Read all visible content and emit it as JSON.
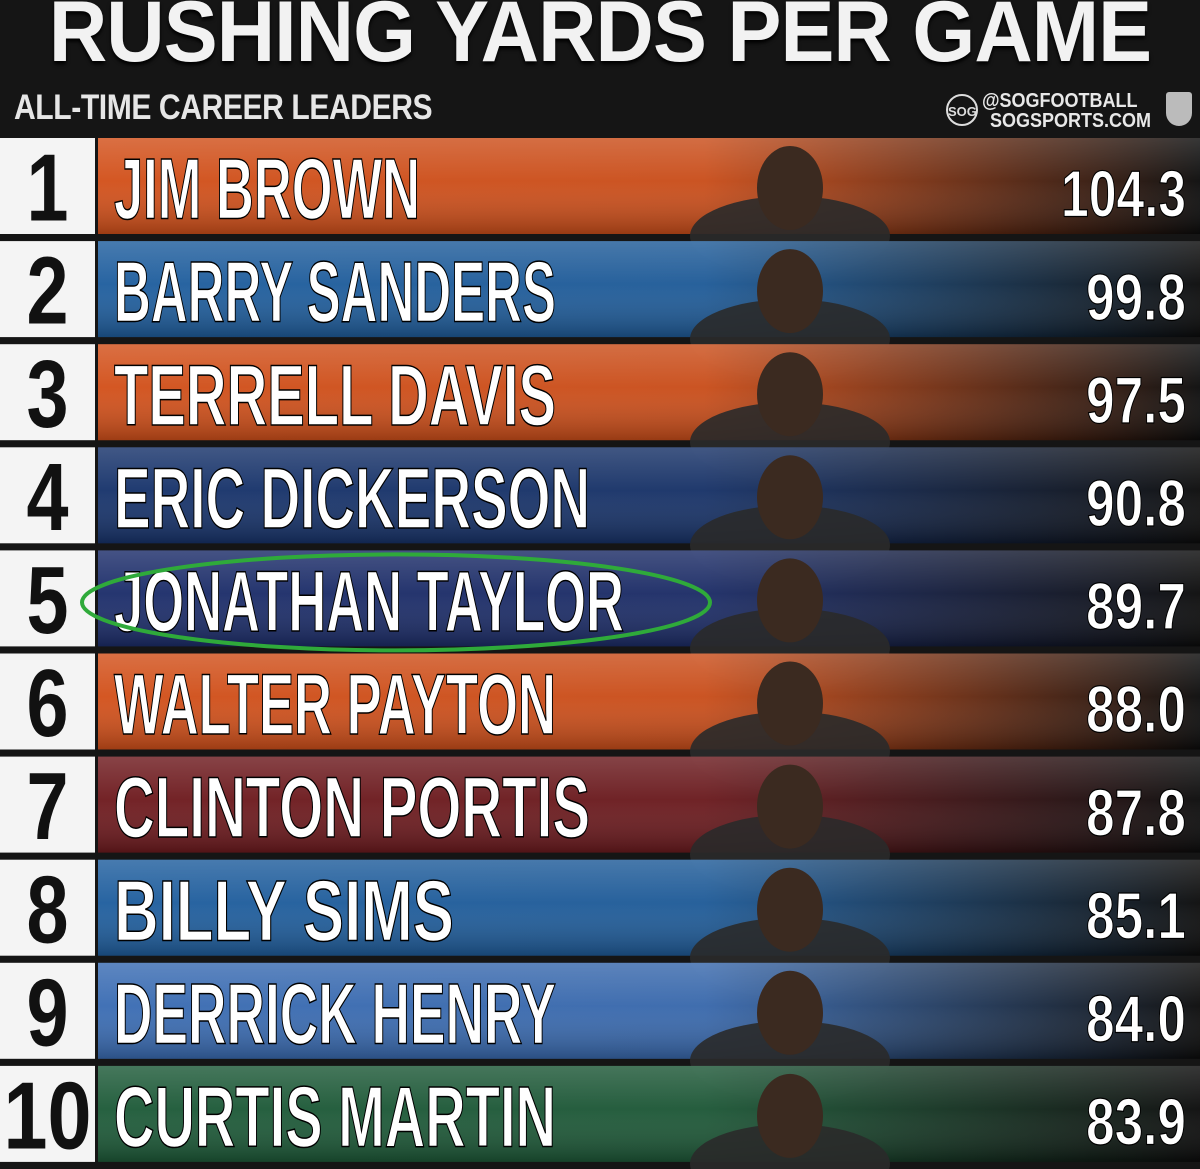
{
  "title": "RUSHING YARDS PER GAME",
  "subtitle": "ALL-TIME CAREER LEADERS",
  "brand": {
    "logo_text": "SOG",
    "handle": "@SOGFOOTBALL",
    "site": "SOGSPORTS.COM"
  },
  "chart_data": {
    "type": "bar",
    "title": "RUSHING YARDS PER GAME",
    "subtitle": "ALL-TIME CAREER LEADERS",
    "categories": [
      "JIM BROWN",
      "BARRY SANDERS",
      "TERRELL DAVIS",
      "ERIC DICKERSON",
      "JONATHAN TAYLOR",
      "WALTER PAYTON",
      "CLINTON PORTIS",
      "BILLY SIMS",
      "DERRICK HENRY",
      "CURTIS MARTIN"
    ],
    "ranks": [
      "1",
      "2",
      "3",
      "4",
      "5",
      "6",
      "7",
      "8",
      "9",
      "10"
    ],
    "values": [
      104.3,
      99.8,
      97.5,
      90.8,
      89.7,
      88.0,
      87.8,
      85.1,
      84.0,
      83.9
    ],
    "value_labels": [
      "104.3",
      "99.8",
      "97.5",
      "90.8",
      "89.7",
      "88.0",
      "87.8",
      "85.1",
      "84.0",
      "83.9"
    ],
    "bar_colors": [
      "#d2501a",
      "#1f5e9e",
      "#d2501a",
      "#17336b",
      "#1c2d6a",
      "#d2501a",
      "#6e1a1e",
      "#1f5e9e",
      "#3a6cb3",
      "#1d5a38"
    ],
    "highlighted": "JONATHAN TAYLOR",
    "highlight_color": "#2faa3a"
  }
}
